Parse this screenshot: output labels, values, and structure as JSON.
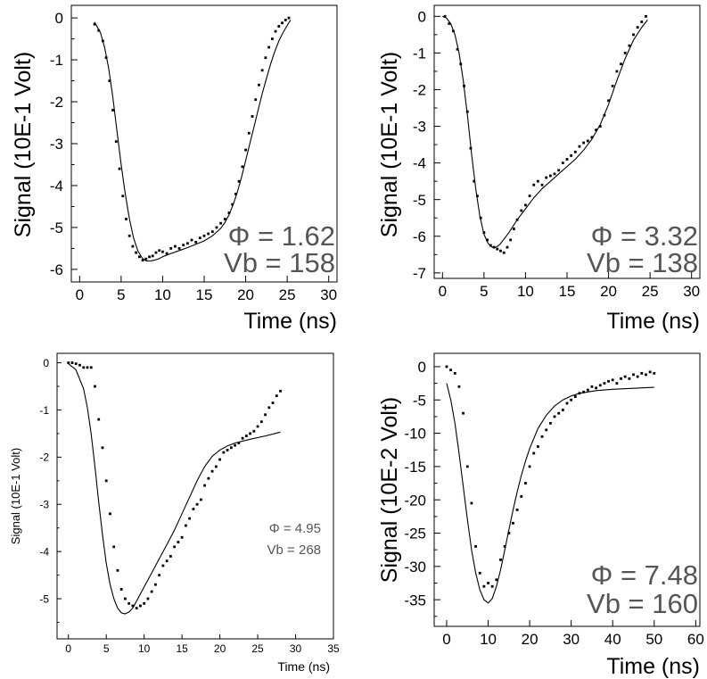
{
  "chart_data": [
    {
      "type": "scatter",
      "xlabel": "Time (ns)",
      "ylabel": "Signal (10E-1 Volt)",
      "xlim": [
        -1,
        31
      ],
      "ylim": [
        -6.3,
        0.3
      ],
      "xticks": [
        0,
        5,
        10,
        15,
        20,
        25,
        30
      ],
      "yticks": [
        0,
        -1,
        -2,
        -3,
        -4,
        -5,
        -6
      ],
      "annotations": [
        "Φ = 1.62",
        "Vb = 158"
      ],
      "series": [
        {
          "kind": "points",
          "x": [
            1.8,
            2.3,
            2.8,
            3.2,
            3.6,
            4.0,
            4.4,
            4.8,
            5.2,
            5.6,
            6.0,
            6.4,
            6.8,
            7.2,
            7.6,
            8.0,
            8.4,
            8.8,
            9.2,
            9.6,
            10.0,
            10.5,
            11.0,
            11.5,
            12.0,
            12.5,
            13.0,
            13.5,
            14.0,
            14.5,
            15.0,
            15.5,
            16.0,
            16.5,
            17.0,
            17.5,
            18.0,
            18.4,
            18.8,
            19.2,
            19.6,
            20.0,
            20.4,
            20.8,
            21.2,
            21.6,
            22.0,
            22.4,
            22.8,
            23.2,
            23.6,
            24.0,
            24.4,
            24.8,
            25.2
          ],
          "y": [
            -0.15,
            -0.3,
            -0.55,
            -0.95,
            -1.5,
            -2.2,
            -2.95,
            -3.6,
            -4.25,
            -4.8,
            -5.2,
            -5.45,
            -5.6,
            -5.7,
            -5.78,
            -5.75,
            -5.7,
            -5.68,
            -5.6,
            -5.55,
            -5.58,
            -5.62,
            -5.5,
            -5.45,
            -5.5,
            -5.42,
            -5.38,
            -5.3,
            -5.35,
            -5.25,
            -5.2,
            -5.15,
            -5.1,
            -5.0,
            -4.9,
            -4.8,
            -4.65,
            -4.45,
            -4.2,
            -3.9,
            -3.55,
            -3.15,
            -2.75,
            -2.35,
            -1.95,
            -1.6,
            -1.25,
            -0.95,
            -0.7,
            -0.5,
            -0.32,
            -0.2,
            -0.12,
            -0.05,
            0.0
          ]
        },
        {
          "kind": "fit",
          "x": [
            1.8,
            2.5,
            3.0,
            3.5,
            4.0,
            4.5,
            5.0,
            5.5,
            6.0,
            6.5,
            7.0,
            7.5,
            8.0,
            8.5,
            9.0,
            9.5,
            10.0,
            11.0,
            12.0,
            13.0,
            14.0,
            15.0,
            16.0,
            17.0,
            17.5,
            18.0,
            18.5,
            19.0,
            19.5,
            20.0,
            20.5,
            21.0,
            21.5,
            22.0,
            22.5,
            23.0,
            23.5,
            24.0,
            24.5,
            25.0,
            25.4
          ],
          "y": [
            -0.1,
            -0.35,
            -0.7,
            -1.2,
            -1.9,
            -2.7,
            -3.5,
            -4.2,
            -4.8,
            -5.25,
            -5.55,
            -5.72,
            -5.8,
            -5.8,
            -5.78,
            -5.75,
            -5.7,
            -5.62,
            -5.55,
            -5.48,
            -5.4,
            -5.32,
            -5.2,
            -5.02,
            -4.88,
            -4.7,
            -4.45,
            -4.15,
            -3.8,
            -3.4,
            -3.0,
            -2.6,
            -2.2,
            -1.8,
            -1.45,
            -1.1,
            -0.8,
            -0.55,
            -0.35,
            -0.18,
            -0.05
          ]
        }
      ]
    },
    {
      "type": "scatter",
      "xlabel": "Time (ns)",
      "ylabel": "Signal (10E-1 Volt)",
      "xlim": [
        -1,
        31
      ],
      "ylim": [
        -7.15,
        0.3
      ],
      "xticks": [
        0,
        5,
        10,
        15,
        20,
        25,
        30
      ],
      "yticks": [
        0,
        -1,
        -2,
        -3,
        -4,
        -5,
        -6,
        -7
      ],
      "annotations": [
        "Φ = 3.32",
        "Vb = 138"
      ],
      "series": [
        {
          "kind": "points",
          "x": [
            0.3,
            0.8,
            1.3,
            1.8,
            2.2,
            2.6,
            3.0,
            3.4,
            3.8,
            4.2,
            4.6,
            5.0,
            5.4,
            5.8,
            6.2,
            6.6,
            7.0,
            7.4,
            7.8,
            8.2,
            8.6,
            9.0,
            9.5,
            10.0,
            10.5,
            11.0,
            11.5,
            12.0,
            12.5,
            13.0,
            13.5,
            14.0,
            14.5,
            15.0,
            15.5,
            16.0,
            16.5,
            17.0,
            17.5,
            18.0,
            18.5,
            19.0,
            19.5,
            20.0,
            20.5,
            21.0,
            21.5,
            22.0,
            22.5,
            23.0,
            23.5,
            24.0,
            24.5
          ],
          "y": [
            0.0,
            -0.2,
            -0.4,
            -0.9,
            -1.3,
            -1.9,
            -2.6,
            -3.6,
            -4.5,
            -4.9,
            -5.5,
            -5.9,
            -6.1,
            -6.25,
            -6.3,
            -6.35,
            -6.4,
            -6.45,
            -6.3,
            -6.1,
            -5.8,
            -5.55,
            -5.3,
            -5.15,
            -4.9,
            -4.6,
            -4.5,
            -4.6,
            -4.4,
            -4.35,
            -4.3,
            -4.2,
            -4.0,
            -3.9,
            -3.8,
            -3.7,
            -3.55,
            -3.45,
            -3.4,
            -3.3,
            -3.1,
            -3.0,
            -2.7,
            -2.3,
            -1.9,
            -1.5,
            -1.3,
            -1.0,
            -0.8,
            -0.5,
            -0.3,
            -0.15,
            0.0
          ]
        },
        {
          "kind": "fit",
          "x": [
            0.0,
            0.5,
            1.0,
            1.5,
            2.0,
            2.5,
            3.0,
            3.5,
            4.0,
            4.5,
            5.0,
            5.5,
            6.0,
            6.5,
            7.0,
            8.0,
            9.0,
            10.0,
            11.0,
            12.0,
            13.0,
            14.0,
            15.0,
            16.0,
            17.0,
            18.0,
            19.0,
            20.0,
            21.0,
            22.0,
            23.0,
            24.0,
            24.7
          ],
          "y": [
            0.0,
            -0.05,
            -0.2,
            -0.5,
            -1.0,
            -1.75,
            -2.7,
            -3.75,
            -4.7,
            -5.45,
            -5.95,
            -6.2,
            -6.3,
            -6.3,
            -6.2,
            -5.9,
            -5.55,
            -5.25,
            -4.95,
            -4.7,
            -4.5,
            -4.3,
            -4.1,
            -3.9,
            -3.65,
            -3.35,
            -2.95,
            -2.4,
            -1.75,
            -1.15,
            -0.65,
            -0.3,
            -0.1
          ]
        }
      ]
    },
    {
      "type": "scatter",
      "xlabel": "Time (ns)",
      "ylabel": "Signal (10E-1 Volt)",
      "xlim": [
        -1.5,
        35
      ],
      "ylim": [
        -5.85,
        0.2
      ],
      "xticks": [
        0,
        5,
        10,
        15,
        20,
        25,
        30,
        35
      ],
      "yticks": [
        0,
        -1,
        -2,
        -3,
        -4,
        -5
      ],
      "annotations": [
        "Φ = 4.95",
        "Vb = 268"
      ],
      "series": [
        {
          "kind": "points",
          "x": [
            0.0,
            0.5,
            1.0,
            1.5,
            2.0,
            2.5,
            3.0,
            3.5,
            4.0,
            4.5,
            5.0,
            5.5,
            6.0,
            6.5,
            7.0,
            7.5,
            8.0,
            8.5,
            9.0,
            9.5,
            10.0,
            10.5,
            11.0,
            11.5,
            12.0,
            12.5,
            13.0,
            13.5,
            14.0,
            14.5,
            15.0,
            15.5,
            16.0,
            16.5,
            17.0,
            17.5,
            18.0,
            18.5,
            19.0,
            19.5,
            20.0,
            20.5,
            21.0,
            21.5,
            22.0,
            22.5,
            23.0,
            23.5,
            24.0,
            24.5,
            25.0,
            25.5,
            26.0,
            26.5,
            27.0,
            27.5,
            28.0
          ],
          "y": [
            0.0,
            0.0,
            -0.02,
            -0.05,
            -0.1,
            -0.1,
            -0.1,
            -0.5,
            -1.2,
            -1.8,
            -2.5,
            -3.2,
            -3.9,
            -4.4,
            -4.8,
            -5.0,
            -5.1,
            -5.15,
            -5.2,
            -5.15,
            -5.1,
            -5.0,
            -4.85,
            -4.7,
            -4.5,
            -4.3,
            -4.2,
            -4.1,
            -3.9,
            -3.8,
            -3.7,
            -3.45,
            -3.3,
            -3.1,
            -3.0,
            -2.9,
            -2.6,
            -2.45,
            -2.3,
            -2.2,
            -2.05,
            -1.9,
            -1.85,
            -1.8,
            -1.75,
            -1.7,
            -1.6,
            -1.55,
            -1.5,
            -1.45,
            -1.35,
            -1.25,
            -1.1,
            -0.95,
            -0.85,
            -0.7,
            -0.6
          ]
        },
        {
          "kind": "fit",
          "x": [
            0.0,
            1.0,
            2.0,
            2.5,
            3.0,
            3.5,
            4.0,
            4.5,
            5.0,
            5.5,
            6.0,
            6.5,
            7.0,
            7.5,
            8.0,
            8.5,
            9.0,
            10.0,
            11.0,
            12.0,
            13.0,
            14.0,
            15.0,
            16.0,
            17.0,
            18.0,
            19.0,
            20.0,
            21.0,
            22.0,
            24.0,
            26.0,
            28.0
          ],
          "y": [
            -0.02,
            -0.15,
            -0.55,
            -0.95,
            -1.5,
            -2.2,
            -2.95,
            -3.65,
            -4.25,
            -4.7,
            -5.0,
            -5.2,
            -5.3,
            -5.32,
            -5.28,
            -5.2,
            -5.05,
            -4.75,
            -4.45,
            -4.15,
            -3.85,
            -3.55,
            -3.2,
            -2.85,
            -2.5,
            -2.2,
            -1.98,
            -1.85,
            -1.76,
            -1.7,
            -1.62,
            -1.55,
            -1.47
          ]
        }
      ]
    },
    {
      "type": "scatter",
      "xlabel": "Time (ns)",
      "ylabel": "Signal (10E-2 Volt)",
      "xlim": [
        -3,
        61
      ],
      "ylim": [
        -39,
        2
      ],
      "xticks": [
        0,
        10,
        20,
        30,
        40,
        50,
        60
      ],
      "yticks": [
        0,
        -5,
        -10,
        -15,
        -20,
        -25,
        -30,
        -35
      ],
      "annotations": [
        "Φ = 7.48",
        "Vb = 160"
      ],
      "series": [
        {
          "kind": "points",
          "x": [
            0.0,
            1.0,
            2.0,
            3.0,
            4.0,
            5.0,
            6.0,
            7.0,
            8.0,
            9.0,
            10.0,
            11.0,
            12.0,
            13.0,
            14.0,
            15.0,
            16.0,
            17.0,
            18.0,
            19.0,
            20.0,
            21.0,
            22.0,
            23.0,
            24.0,
            25.0,
            26.0,
            27.0,
            28.0,
            29.0,
            30.0,
            31.0,
            32.0,
            33.0,
            34.0,
            35.0,
            36.0,
            37.0,
            38.0,
            39.0,
            40.0,
            41.0,
            42.0,
            43.0,
            44.0,
            45.0,
            46.0,
            47.0,
            48.0,
            49.0,
            50.0
          ],
          "y": [
            0.0,
            -0.5,
            -1.0,
            -3.0,
            -7.0,
            -15.0,
            -20.5,
            -27.0,
            -31.0,
            -33.0,
            -32.5,
            -33.0,
            -32.0,
            -29.0,
            -27.0,
            -25.0,
            -23.5,
            -21.5,
            -19.5,
            -17.5,
            -15.0,
            -13.0,
            -12.0,
            -10.5,
            -9.5,
            -8.5,
            -7.5,
            -7.0,
            -6.5,
            -5.5,
            -5.0,
            -4.5,
            -4.0,
            -3.8,
            -3.5,
            -3.0,
            -3.2,
            -2.8,
            -2.5,
            -2.2,
            -2.0,
            -2.5,
            -1.8,
            -1.5,
            -1.8,
            -1.2,
            -1.5,
            -1.0,
            -1.2,
            -0.8,
            -1.0
          ]
        },
        {
          "kind": "fit",
          "x": [
            0.0,
            1.0,
            2.0,
            3.0,
            4.0,
            5.0,
            6.0,
            7.0,
            8.0,
            9.0,
            10.0,
            11.0,
            12.0,
            13.0,
            14.0,
            15.0,
            16.0,
            17.0,
            18.0,
            19.0,
            20.0,
            22.0,
            24.0,
            26.0,
            28.0,
            30.0,
            32.0,
            34.0,
            36.0,
            40.0,
            45.0,
            50.0
          ],
          "y": [
            -2.5,
            -5.0,
            -8.5,
            -13.0,
            -18.0,
            -23.0,
            -27.5,
            -31.0,
            -33.5,
            -35.0,
            -35.5,
            -34.8,
            -33.0,
            -30.5,
            -27.5,
            -24.5,
            -21.5,
            -18.8,
            -16.3,
            -14.2,
            -12.3,
            -9.3,
            -7.3,
            -5.9,
            -5.0,
            -4.4,
            -4.0,
            -3.8,
            -3.6,
            -3.4,
            -3.25,
            -3.1
          ]
        }
      ]
    }
  ]
}
